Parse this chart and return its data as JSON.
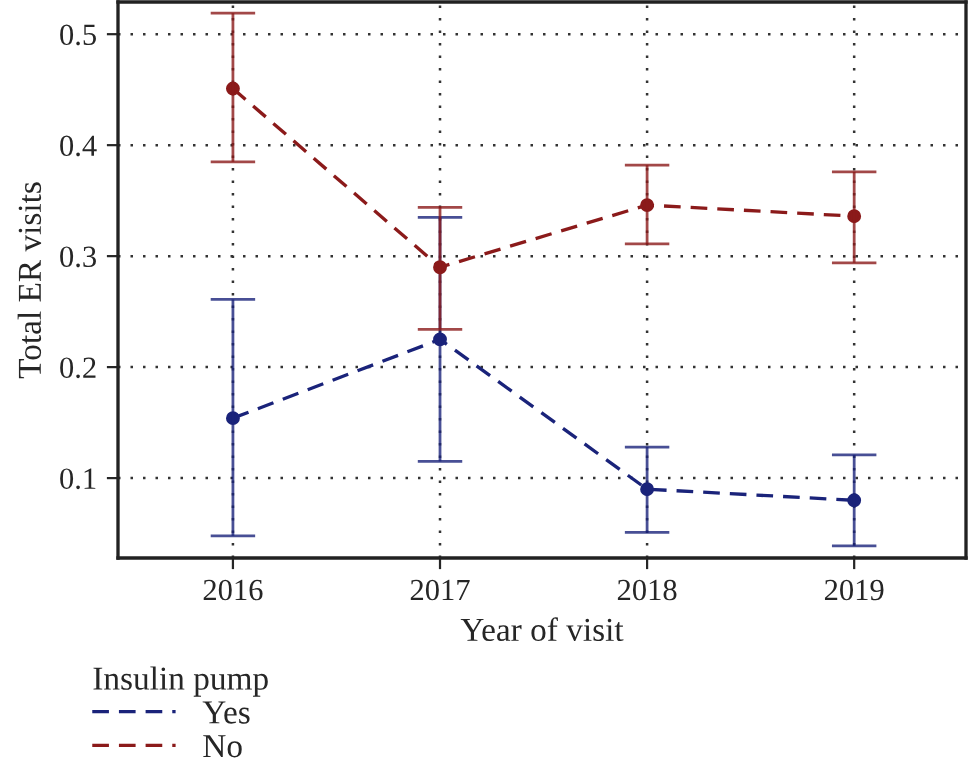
{
  "chart_data": {
    "type": "line",
    "xlabel": "Year of visit",
    "ylabel": "Total ER visits",
    "legend_title": "Insulin pump",
    "categories": [
      "2016",
      "2017",
      "2018",
      "2019"
    ],
    "ylim": [
      0.028,
      0.529
    ],
    "yticks": [
      0.1,
      0.2,
      0.3,
      0.4,
      0.5
    ],
    "grid": true,
    "legend": "bottom left",
    "marker": "circle",
    "line_style": "dashed",
    "series": [
      {
        "name": "Yes",
        "color": "#1a237a",
        "values": [
          0.154,
          0.225,
          0.09,
          0.08
        ],
        "errors": [
          [
            0.048,
            0.261
          ],
          [
            0.115,
            0.335
          ],
          [
            0.051,
            0.128
          ],
          [
            0.039,
            0.121
          ]
        ]
      },
      {
        "name": "No",
        "color": "#8b1a1a",
        "values": [
          0.451,
          0.29,
          0.346,
          0.336
        ],
        "errors": [
          [
            0.385,
            0.519
          ],
          [
            0.234,
            0.344
          ],
          [
            0.311,
            0.382
          ],
          [
            0.294,
            0.376
          ]
        ]
      }
    ]
  }
}
